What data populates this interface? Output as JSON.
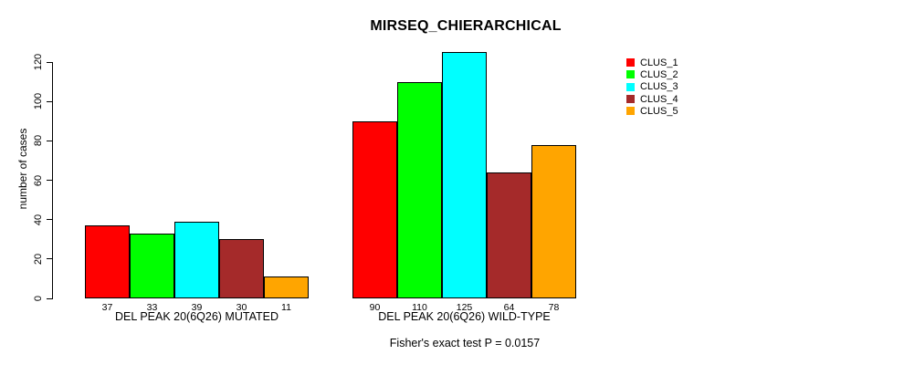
{
  "chart_data": {
    "type": "bar",
    "title": "MIRSEQ_CHIERARCHICAL",
    "ylabel": "number of cases",
    "xlabel": "",
    "ylim": [
      0,
      125
    ],
    "yticks": [
      0,
      20,
      40,
      60,
      80,
      100,
      120
    ],
    "grid": false,
    "legend_position": "right",
    "bar_value_labels": true,
    "categories": [
      "DEL PEAK 20(6Q26) MUTATED",
      "DEL PEAK 20(6Q26) WILD-TYPE"
    ],
    "series": [
      {
        "name": "CLUS_1",
        "color": "#FF0000",
        "values": [
          37,
          90
        ]
      },
      {
        "name": "CLUS_2",
        "color": "#00FF00",
        "values": [
          33,
          110
        ]
      },
      {
        "name": "CLUS_3",
        "color": "#00FFFF",
        "values": [
          39,
          125
        ]
      },
      {
        "name": "CLUS_4",
        "color": "#A52A2A",
        "values": [
          30,
          64
        ]
      },
      {
        "name": "CLUS_5",
        "color": "#FFA500",
        "values": [
          11,
          78
        ]
      }
    ],
    "annotation": "Fisher's exact test P = 0.0157"
  }
}
